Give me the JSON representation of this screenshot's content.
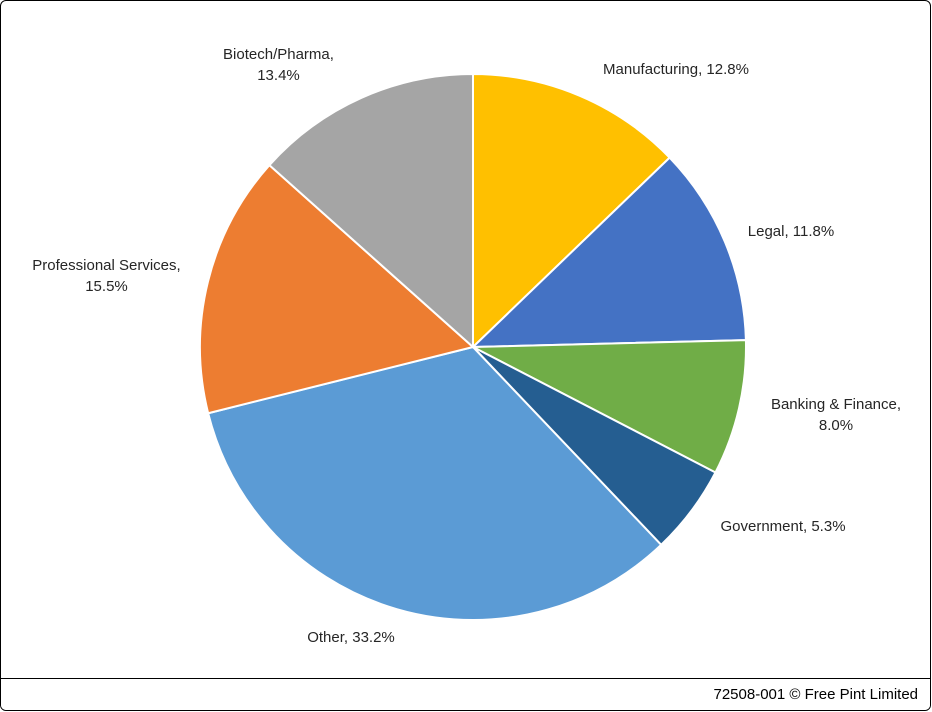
{
  "chart_data": {
    "type": "pie",
    "title": "",
    "legend_position": "none",
    "data_labels": "outside",
    "start_angle_deg": -90,
    "direction": "clockwise",
    "slices": [
      {
        "label": "Manufacturing",
        "value": 12.8,
        "color": "#FFC000",
        "label_text": "Manufacturing, 12.8%"
      },
      {
        "label": "Legal",
        "value": 11.8,
        "color": "#4472C4",
        "label_text": "Legal, 11.8%"
      },
      {
        "label": "Banking & Finance",
        "value": 8.0,
        "color": "#70AD47",
        "label_text": "Banking & Finance,\n8.0%"
      },
      {
        "label": "Government",
        "value": 5.3,
        "color": "#255E91",
        "label_text": "Government, 5.3%"
      },
      {
        "label": "Other",
        "value": 33.2,
        "color": "#5B9BD5",
        "label_text": "Other, 33.2%"
      },
      {
        "label": "Professional Services",
        "value": 15.5,
        "color": "#ED7D31",
        "label_text": "Professional Services,\n15.5%"
      },
      {
        "label": "Biotech/Pharma",
        "value": 13.4,
        "color": "#A5A5A5",
        "label_text": "Biotech/Pharma,\n13.4%"
      }
    ],
    "slice_separator_color": "#FFFFFF"
  },
  "footer": {
    "text": "72508-001 © Free Pint Limited"
  }
}
